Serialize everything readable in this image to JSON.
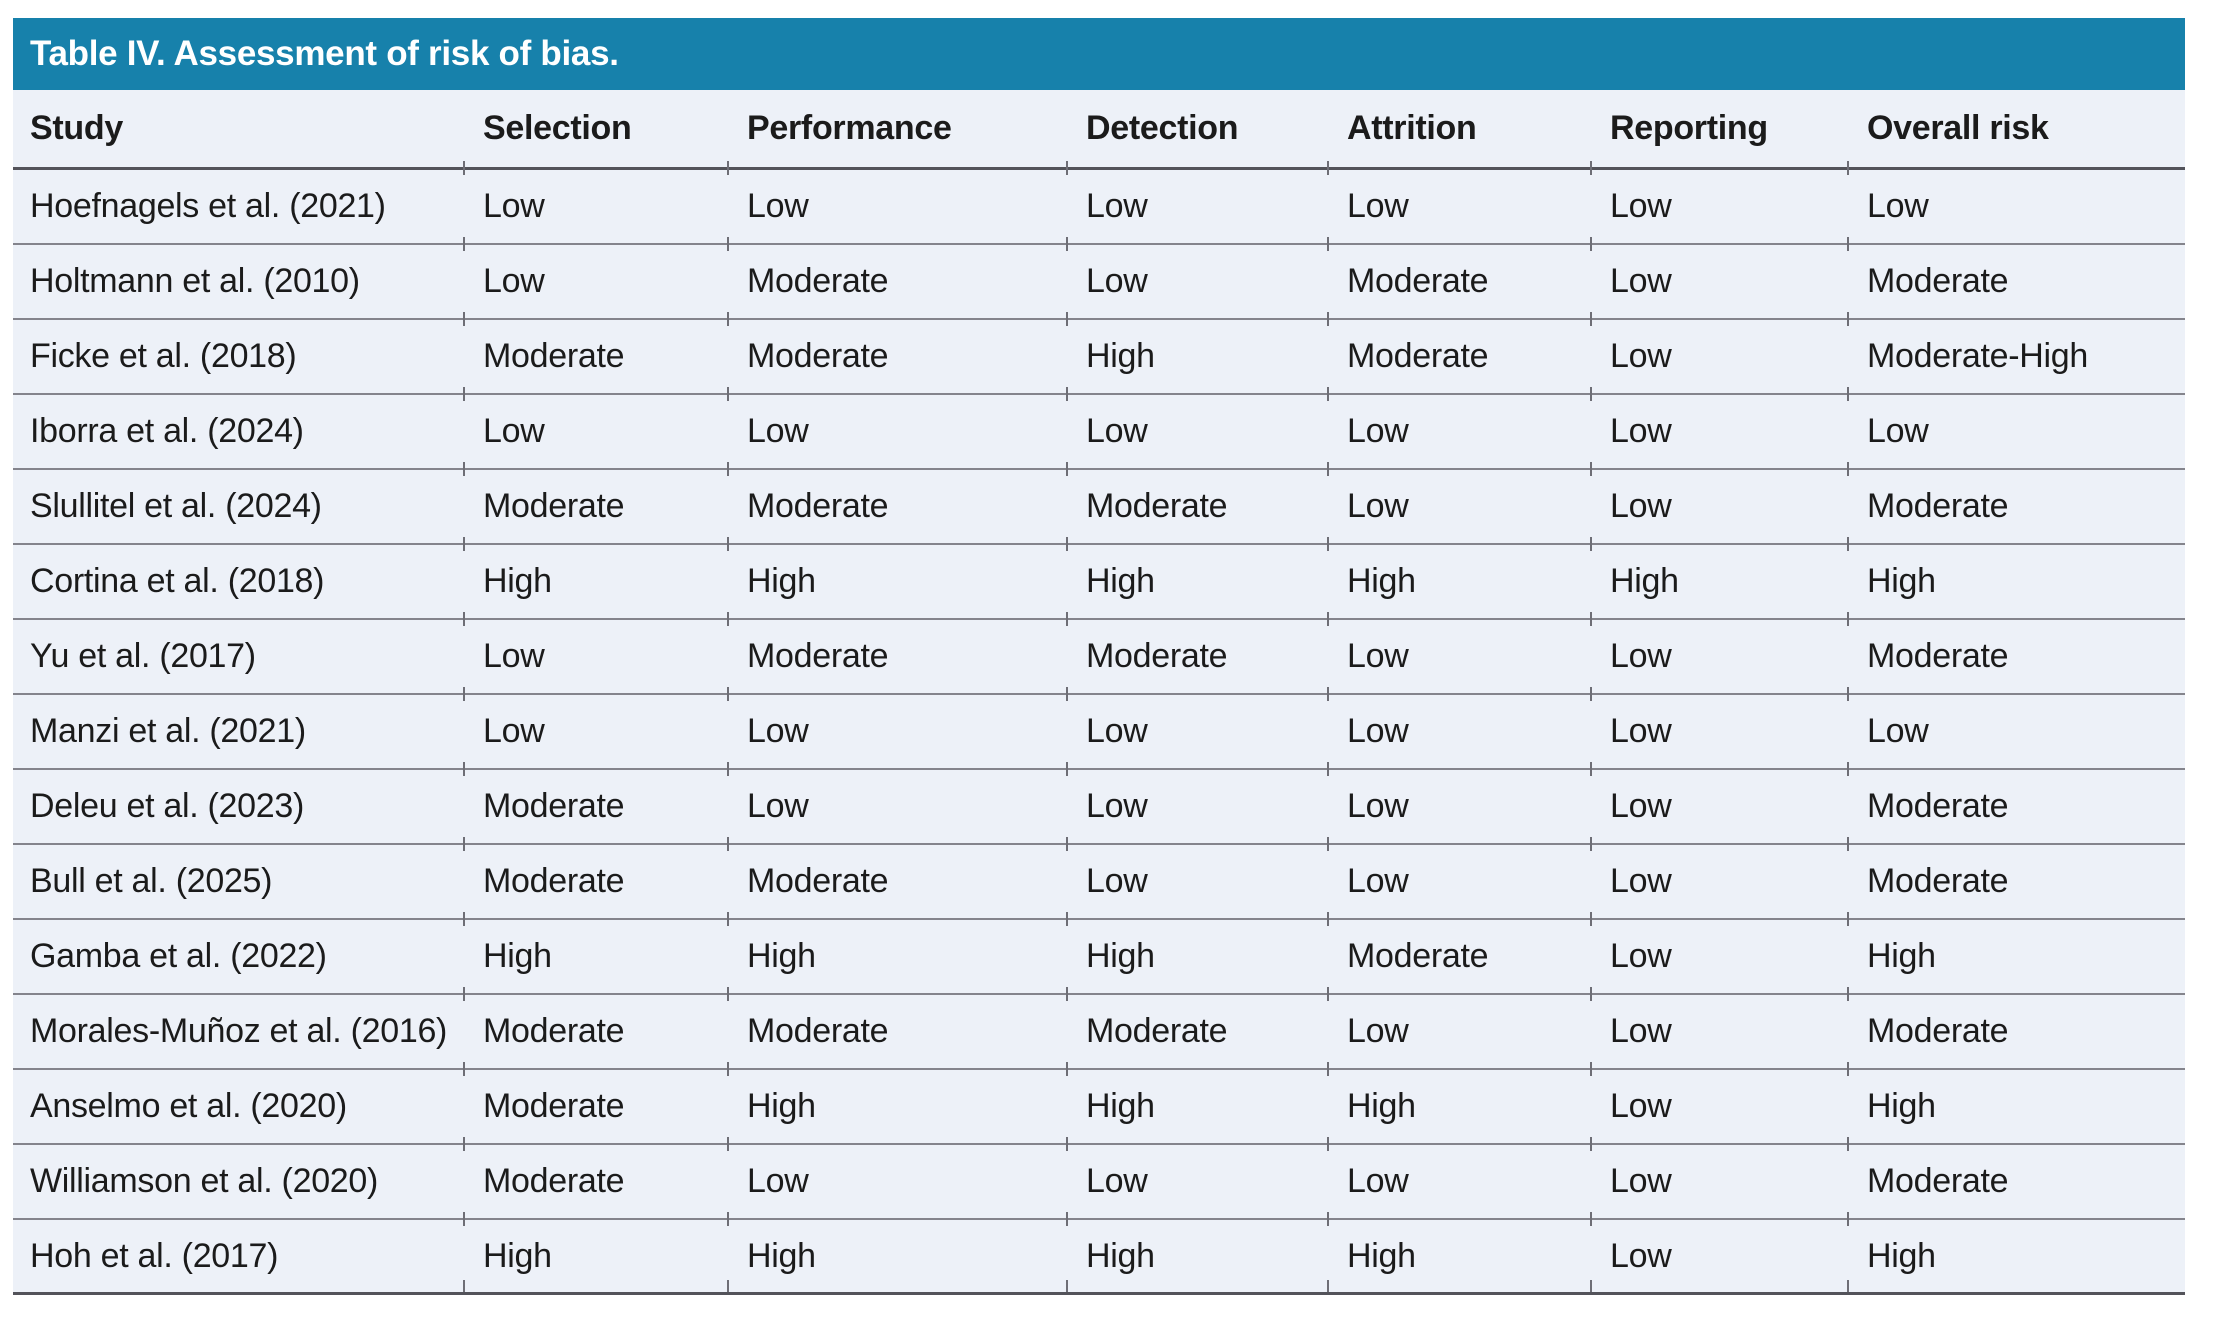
{
  "title": "Table IV. Assessment of risk of bias.",
  "columns": [
    "Study",
    "Selection",
    "Performance",
    "Detection",
    "Attrition",
    "Reporting",
    "Overall risk"
  ],
  "rows": [
    {
      "study": "Hoefnagels et al. (2021)",
      "selection": "Low",
      "performance": "Low",
      "detection": "Low",
      "attrition": "Low",
      "reporting": "Low",
      "overall": "Low"
    },
    {
      "study": "Holtmann et al. (2010)",
      "selection": "Low",
      "performance": "Moderate",
      "detection": "Low",
      "attrition": "Moderate",
      "reporting": "Low",
      "overall": "Moderate"
    },
    {
      "study": "Ficke et al. (2018)",
      "selection": "Moderate",
      "performance": "Moderate",
      "detection": "High",
      "attrition": "Moderate",
      "reporting": "Low",
      "overall": "Moderate-High"
    },
    {
      "study": "Iborra et al. (2024)",
      "selection": "Low",
      "performance": "Low",
      "detection": "Low",
      "attrition": "Low",
      "reporting": "Low",
      "overall": "Low"
    },
    {
      "study": "Slullitel et al. (2024)",
      "selection": "Moderate",
      "performance": "Moderate",
      "detection": "Moderate",
      "attrition": "Low",
      "reporting": "Low",
      "overall": "Moderate"
    },
    {
      "study": "Cortina et al. (2018)",
      "selection": "High",
      "performance": "High",
      "detection": "High",
      "attrition": "High",
      "reporting": "High",
      "overall": "High"
    },
    {
      "study": "Yu et al. (2017)",
      "selection": "Low",
      "performance": "Moderate",
      "detection": "Moderate",
      "attrition": "Low",
      "reporting": "Low",
      "overall": "Moderate"
    },
    {
      "study": "Manzi et al. (2021)",
      "selection": "Low",
      "performance": "Low",
      "detection": "Low",
      "attrition": "Low",
      "reporting": "Low",
      "overall": "Low"
    },
    {
      "study": "Deleu et al. (2023)",
      "selection": "Moderate",
      "performance": "Low",
      "detection": "Low",
      "attrition": "Low",
      "reporting": "Low",
      "overall": "Moderate"
    },
    {
      "study": "Bull et al. (2025)",
      "selection": "Moderate",
      "performance": "Moderate",
      "detection": "Low",
      "attrition": "Low",
      "reporting": "Low",
      "overall": "Moderate"
    },
    {
      "study": "Gamba et al. (2022)",
      "selection": "High",
      "performance": "High",
      "detection": "High",
      "attrition": "Moderate",
      "reporting": "Low",
      "overall": "High"
    },
    {
      "study": "Morales-Muñoz et al. (2016)",
      "selection": "Moderate",
      "performance": "Moderate",
      "detection": "Moderate",
      "attrition": "Low",
      "reporting": "Low",
      "overall": "Moderate"
    },
    {
      "study": "Anselmo et al. (2020)",
      "selection": "Moderate",
      "performance": "High",
      "detection": "High",
      "attrition": "High",
      "reporting": "Low",
      "overall": "High"
    },
    {
      "study": "Williamson et al. (2020)",
      "selection": "Moderate",
      "performance": "Low",
      "detection": "Low",
      "attrition": "Low",
      "reporting": "Low",
      "overall": "Moderate"
    },
    {
      "study": "Hoh et al. (2017)",
      "selection": "High",
      "performance": "High",
      "detection": "High",
      "attrition": "High",
      "reporting": "Low",
      "overall": "High"
    }
  ],
  "colors": {
    "title_bar": "#1781ab",
    "title_text": "#ffffff",
    "table_background": "#edf1f8",
    "row_divider": "#84848c",
    "strong_divider": "#53535a",
    "text": "#1b1b1b"
  }
}
